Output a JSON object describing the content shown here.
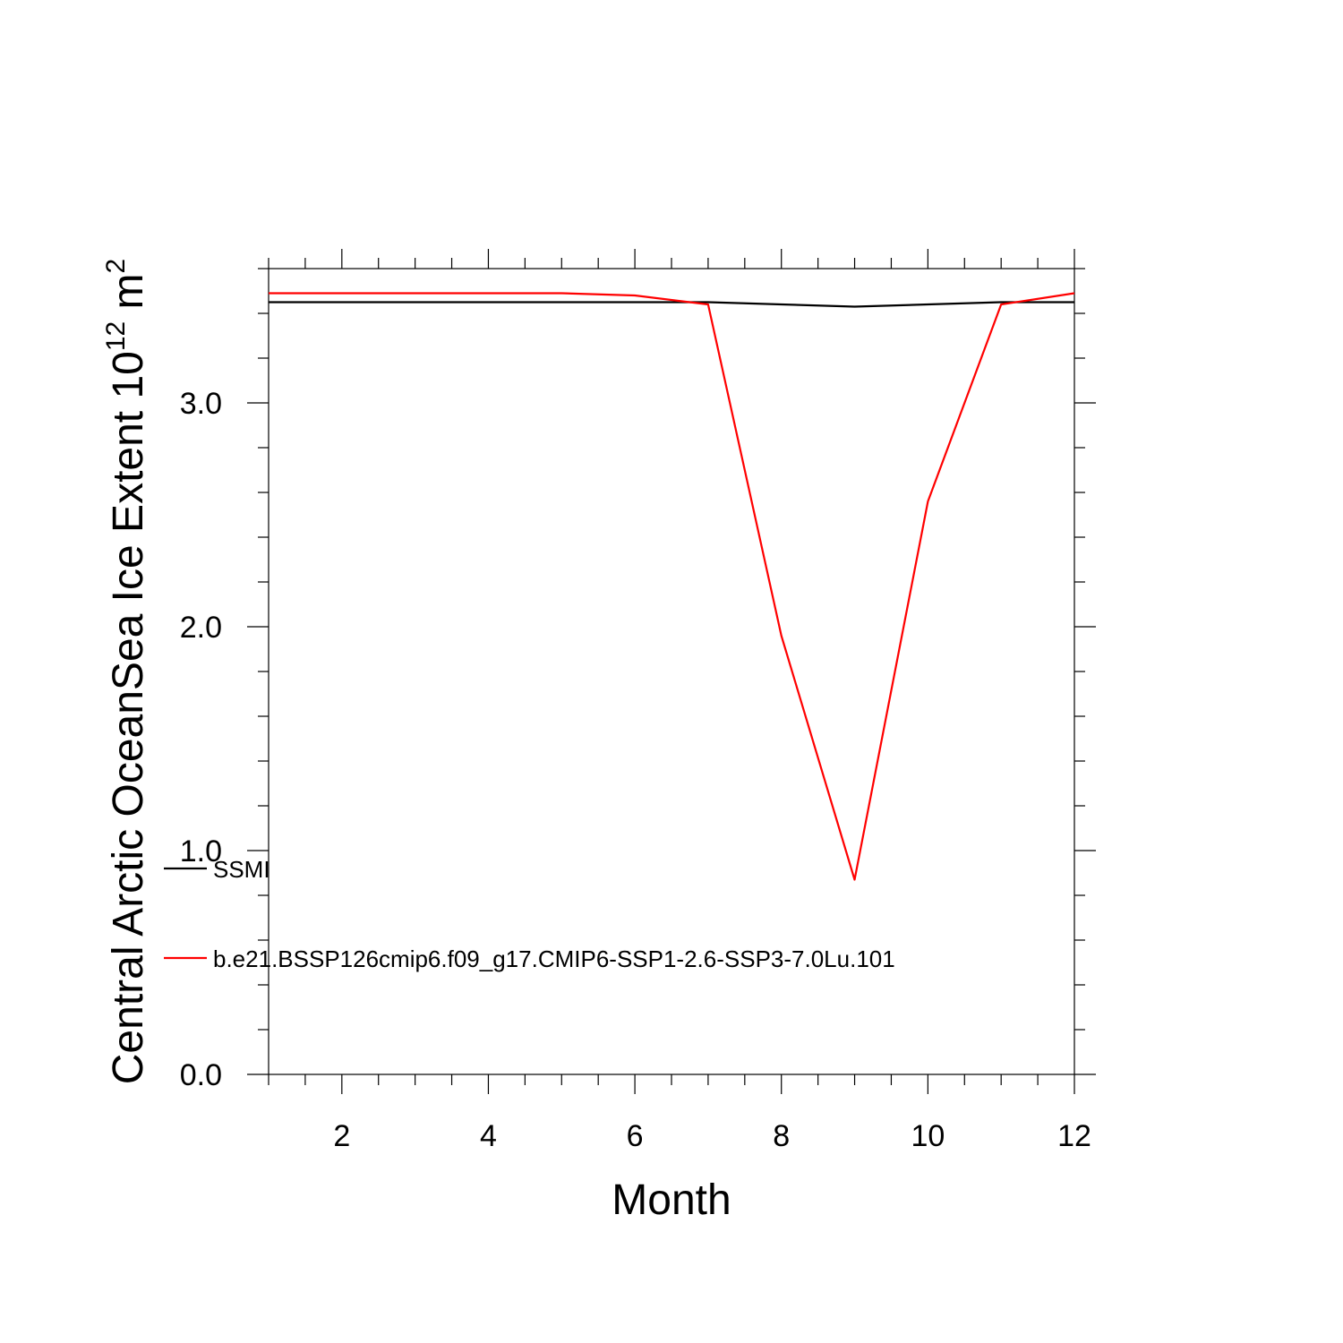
{
  "chart_data": {
    "type": "line",
    "xlabel": "Month",
    "ylabel": {
      "prefix": "Central Arctic OceanSea Ice Extent 10",
      "superscript": "12",
      "unit": " m",
      "unit_superscript": "2"
    },
    "x": [
      1,
      2,
      3,
      4,
      5,
      6,
      7,
      8,
      9,
      10,
      11,
      12
    ],
    "xlim": [
      1,
      12
    ],
    "ylim": [
      0,
      3.6
    ],
    "xticks": [
      {
        "value": 2,
        "label": "2"
      },
      {
        "value": 4,
        "label": "4"
      },
      {
        "value": 6,
        "label": "6"
      },
      {
        "value": 8,
        "label": "8"
      },
      {
        "value": 10,
        "label": "10"
      },
      {
        "value": 12,
        "label": "12"
      }
    ],
    "yticks": [
      {
        "value": 0,
        "label": "0.0"
      },
      {
        "value": 1,
        "label": "1.0"
      },
      {
        "value": 2,
        "label": "2.0"
      },
      {
        "value": 3,
        "label": "3.0"
      }
    ],
    "x_minor_step": 0.5,
    "y_minor_step": 0.2,
    "grid": false,
    "legend_position": "lower-left",
    "series": [
      {
        "name": "SSMI",
        "color": "#000000",
        "values": [
          3.45,
          3.45,
          3.45,
          3.45,
          3.45,
          3.45,
          3.45,
          3.44,
          3.43,
          3.44,
          3.45,
          3.45
        ]
      },
      {
        "name": "b.e21.BSSP126cmip6.f09_g17.CMIP6-SSP1-2.6-SSP3-7.0Lu.101",
        "color": "#ff0000",
        "values": [
          3.49,
          3.49,
          3.49,
          3.49,
          3.49,
          3.48,
          3.44,
          1.96,
          0.87,
          2.56,
          3.44,
          3.49
        ]
      }
    ]
  }
}
